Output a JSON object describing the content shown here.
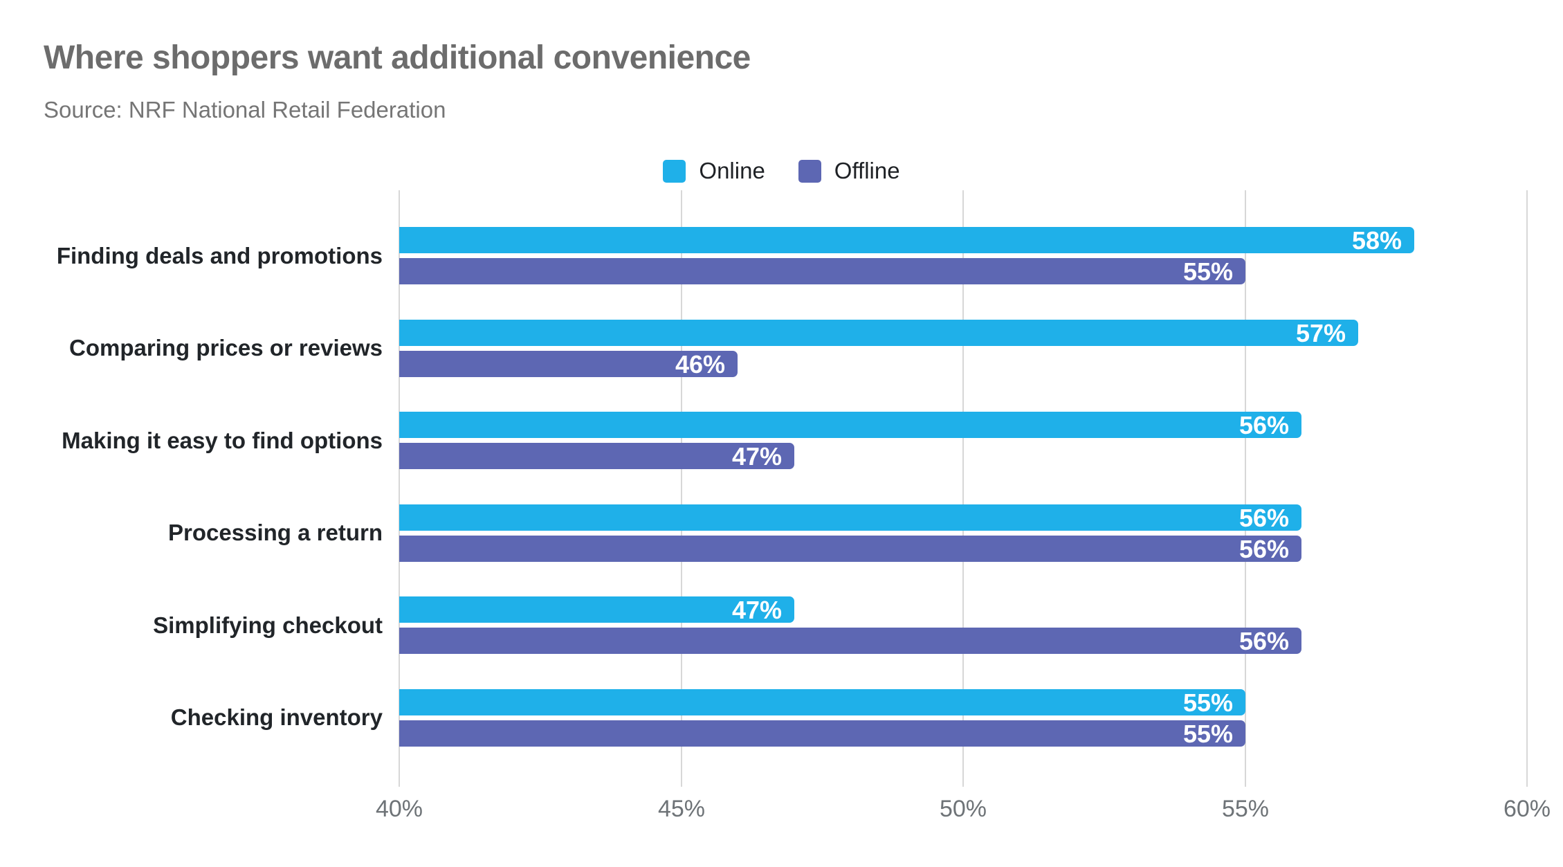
{
  "chart_data": {
    "type": "bar",
    "orientation": "horizontal",
    "title": "Where shoppers want additional convenience",
    "source": "Source: NRF National Retail Federation",
    "categories": [
      "Finding deals and promotions",
      "Comparing prices or reviews",
      "Making it easy to find options",
      "Processing a return",
      "Simplifying checkout",
      "Checking inventory"
    ],
    "series": [
      {
        "name": "Online",
        "color": "#1FB0E9",
        "values": [
          58,
          57,
          56,
          56,
          47,
          55
        ]
      },
      {
        "name": "Offline",
        "color": "#5D67B3",
        "values": [
          55,
          46,
          47,
          56,
          56,
          55
        ]
      }
    ],
    "value_suffix": "%",
    "xlim": [
      40,
      60
    ],
    "x_tick_values": [
      40,
      45,
      50,
      55,
      60
    ],
    "x_tick_labels": [
      "40%",
      "45%",
      "50%",
      "55%",
      "60%"
    ],
    "legend_position": "top-center",
    "grid": "vertical",
    "data_labels": "inside-end"
  },
  "colors": {
    "background": "#FFFFFF",
    "title_text": "#6C6C6C",
    "source_text": "#757575",
    "legend_text": "#1E2125",
    "category_text": "#212529",
    "tick_text": "#6E7377",
    "value_label_text": "#FFFFFF",
    "gridline": "#D7D7D7"
  }
}
